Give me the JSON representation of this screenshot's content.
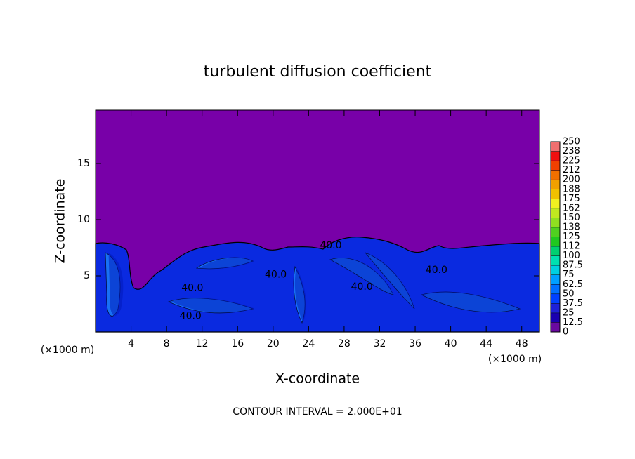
{
  "chart_data": {
    "type": "contour",
    "title": "turbulent diffusion coefficient",
    "x_label": "X-coordinate",
    "y_label": "Z-coordinate",
    "x_unit": "(×1000 m)",
    "y_unit": "(×1000 m)",
    "footnote": "CONTOUR INTERVAL = 2.000E+01",
    "xlim": [
      0,
      50
    ],
    "ylim": [
      0,
      19.75
    ],
    "xticks": [
      4,
      8,
      12,
      16,
      20,
      24,
      28,
      32,
      36,
      40,
      44,
      48
    ],
    "yticks": [
      5,
      10,
      15
    ],
    "background_color": "#7800a8",
    "field_color": "#0a2ae0",
    "contour_labels": [
      {
        "value": 40,
        "label": "40.0",
        "x": 26.5,
        "z": 7.7
      },
      {
        "value": 40,
        "label": "40.0",
        "x": 10.9,
        "z": 3.9
      },
      {
        "value": 40,
        "label": "40.0",
        "x": 10.7,
        "z": 1.4
      },
      {
        "value": 40,
        "label": "40.0",
        "x": 20.3,
        "z": 5.1
      },
      {
        "value": 40,
        "label": "40.0",
        "x": 30.0,
        "z": 4.0
      },
      {
        "value": 40,
        "label": "40.0",
        "x": 38.4,
        "z": 5.5
      }
    ],
    "colorbar": {
      "ticks": [
        0,
        12.5,
        25,
        37.5,
        50,
        62.5,
        75,
        87.5,
        100,
        {
          "value": 112.5,
          "label": "112"
        },
        125,
        {
          "value": 137.5,
          "label": "138"
        },
        150,
        {
          "value": 162.5,
          "label": "162"
        },
        175,
        {
          "value": 187.5,
          "label": "188"
        },
        200,
        {
          "value": 212.5,
          "label": "212"
        },
        225,
        {
          "value": 237.5,
          "label": "238"
        },
        250
      ],
      "colors": [
        "#6a0aa0",
        "#1a00b0",
        "#1e20d8",
        "#0040ff",
        "#0070ff",
        "#00a0ff",
        "#00d0e0",
        "#00e0b0",
        "#00d070",
        "#20c820",
        "#50d020",
        "#90e020",
        "#c0e820",
        "#f0f020",
        "#f0c000",
        "#f0a000",
        "#f07000",
        "#f04000",
        "#f01010",
        "#f07070"
      ]
    }
  }
}
